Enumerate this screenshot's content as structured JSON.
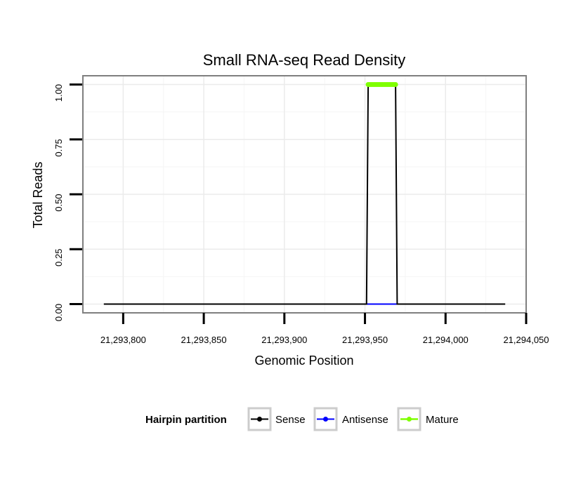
{
  "chart_data": {
    "type": "line",
    "title": "Small RNA-seq Read Density",
    "xlabel": "Genomic Position",
    "ylabel": "Total Reads",
    "xlim": [
      21293775,
      21294050
    ],
    "ylim": [
      -0.04,
      1.04
    ],
    "x_ticks": [
      21293800,
      21293850,
      21293900,
      21293950,
      21294000,
      21294050
    ],
    "x_tick_labels": [
      "21,293,800",
      "21,293,850",
      "21,293,900",
      "21,293,950",
      "21,294,000",
      "21,294,050"
    ],
    "y_ticks": [
      0,
      0.25,
      0.5,
      0.75,
      1.0
    ],
    "y_tick_labels": [
      "0.00",
      "0.25",
      "0.50",
      "0.75",
      "1.00"
    ],
    "grid": true,
    "legend_position": "bottom",
    "legend_title": "Hairpin partition",
    "series": [
      {
        "name": "Sense",
        "color": "#000000",
        "points": [
          [
            21293788,
            0
          ],
          [
            21293951,
            0
          ],
          [
            21293952,
            1
          ],
          [
            21293969,
            1
          ],
          [
            21293970,
            0
          ],
          [
            21294037,
            0
          ]
        ]
      },
      {
        "name": "Antisense",
        "color": "#0000ff",
        "points": [
          [
            21293951,
            0
          ],
          [
            21293970,
            0
          ]
        ]
      },
      {
        "name": "Mature",
        "color": "#7fff00",
        "points": [
          [
            21293952,
            1
          ],
          [
            21293969,
            1
          ]
        ]
      }
    ]
  }
}
